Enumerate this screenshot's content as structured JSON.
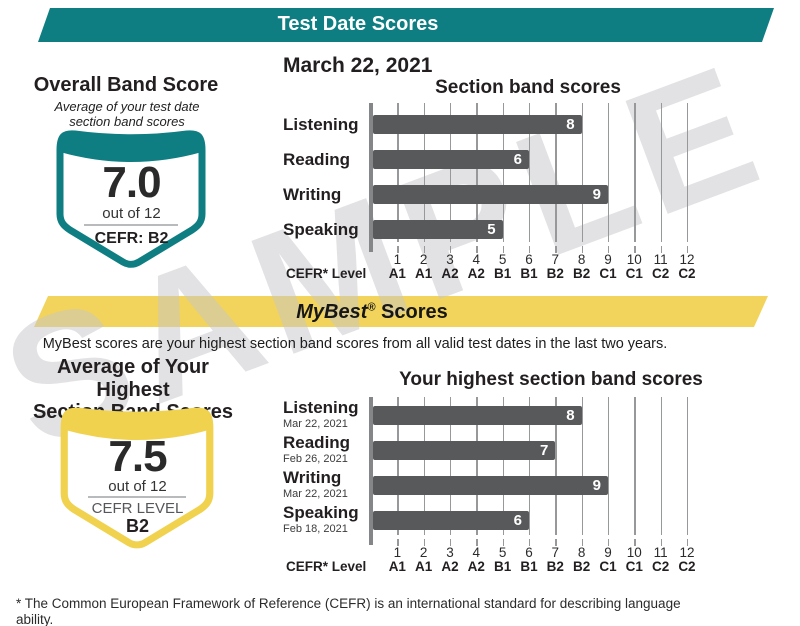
{
  "watermark": "SAMPLE",
  "banner_test_date": {
    "title": "Test Date Scores"
  },
  "test_date": "March 22, 2021",
  "overall": {
    "heading": "Overall Band Score",
    "subheading": "Average of your test date\nsection band scores",
    "score": "7.0",
    "out_of": "out of 12",
    "cefr": "CEFR: B2"
  },
  "banner_mybest": {
    "title_italic": "MyBest",
    "registered": "®",
    "title_rest": " Scores"
  },
  "mybest_description": "MyBest scores are your highest section band scores from all valid test dates in the last two years.",
  "highest": {
    "heading": "Average of Your Highest\nSection Band Scores",
    "score": "7.5",
    "out_of": "out of 12",
    "cefr_label": "CEFR LEVEL",
    "cefr_value": "B2"
  },
  "footnote": "* The Common European Framework of Reference (CEFR) is an international standard for describing language ability.",
  "colors": {
    "teal": "#0e7e82",
    "yellow": "#f2d45c",
    "bar_gray": "#58595b",
    "gridline_gray": "#97989a"
  },
  "chart_data": [
    {
      "type": "bar",
      "title": "Section band scores",
      "categories": [
        "Listening",
        "Reading",
        "Writing",
        "Speaking"
      ],
      "values": [
        8,
        6,
        9,
        5
      ],
      "xlabel": "CEFR* Level",
      "xticks": [
        "1",
        "2",
        "3",
        "4",
        "5",
        "6",
        "7",
        "8",
        "9",
        "10",
        "11",
        "12"
      ],
      "xtick_cefr": [
        "A1",
        "A1",
        "A2",
        "A2",
        "B1",
        "B1",
        "B2",
        "B2",
        "C1",
        "C1",
        "C2",
        "C2"
      ],
      "xlim": [
        0,
        12
      ],
      "grid": "vertical",
      "bar_labels_inside": true
    },
    {
      "type": "bar",
      "title": "Your highest section band scores",
      "categories": [
        "Listening",
        "Reading",
        "Writing",
        "Speaking"
      ],
      "dates": [
        "Mar 22, 2021",
        "Feb 26, 2021",
        "Mar 22, 2021",
        "Feb 18, 2021"
      ],
      "values": [
        8,
        7,
        9,
        6
      ],
      "xlabel": "CEFR* Level",
      "xticks": [
        "1",
        "2",
        "3",
        "4",
        "5",
        "6",
        "7",
        "8",
        "9",
        "10",
        "11",
        "12"
      ],
      "xtick_cefr": [
        "A1",
        "A1",
        "A2",
        "A2",
        "B1",
        "B1",
        "B2",
        "B2",
        "C1",
        "C1",
        "C2",
        "C2"
      ],
      "xlim": [
        0,
        12
      ],
      "grid": "vertical",
      "bar_labels_inside": true
    }
  ]
}
